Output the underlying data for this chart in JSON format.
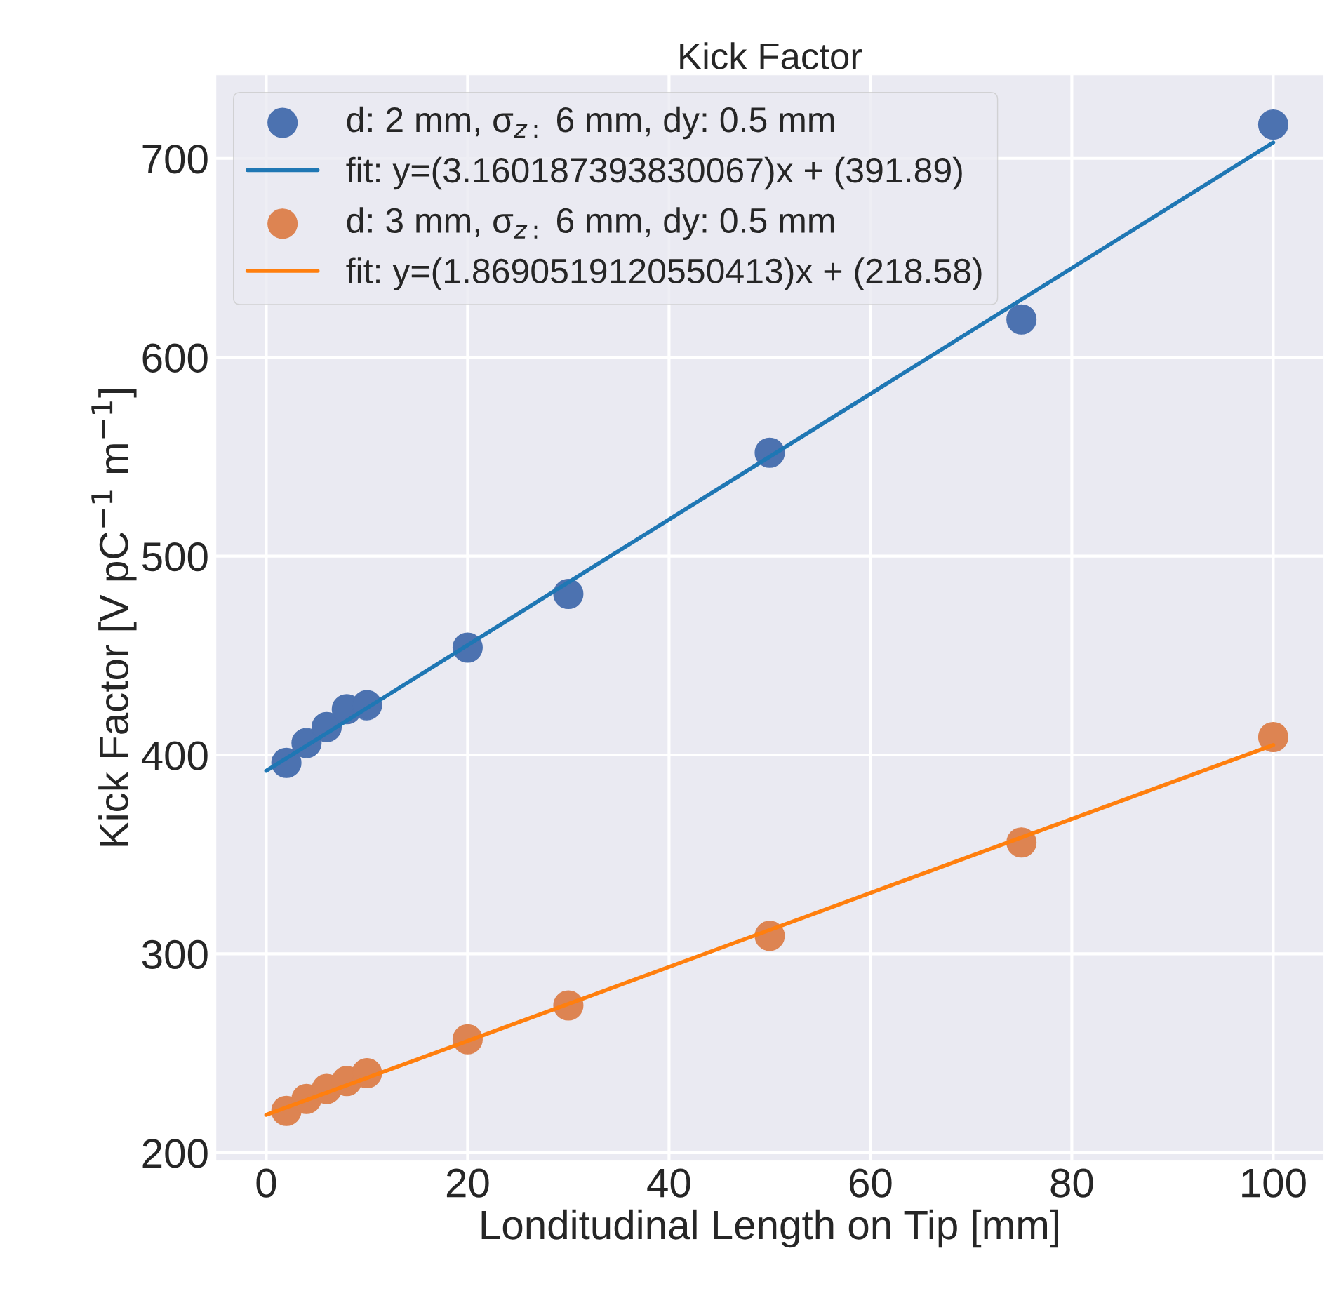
{
  "chart_data": {
    "type": "scatter",
    "title": "Kick Factor",
    "xlabel": "Londitudinal Length on Tip [mm]",
    "ylabel": "Kick Factor [V pC$^{−1}$ m$^{−1}$]",
    "series": [
      {
        "marker": "circle",
        "name": "d: 2 mm, σ$_{z:}$ 6 mm, dy: 0.5 mm",
        "color": "#4c72b0",
        "x": [
          2,
          4,
          6,
          8,
          10,
          20,
          30,
          50,
          75,
          100
        ],
        "values": [
          396,
          406,
          414,
          423,
          425,
          454,
          481,
          552,
          619,
          717
        ]
      },
      {
        "type": "line",
        "marker": "none",
        "name": "fit: y=(3.160187393830067)x + (391.89)",
        "color": "#1f77b4",
        "x": [
          0,
          100
        ],
        "values": [
          392,
          708
        ]
      },
      {
        "marker": "circle",
        "name": "d: 3 mm, σ$_{z:}$ 6 mm, dy: 0.5 mm",
        "color": "#dd8452",
        "x": [
          2,
          4,
          6,
          8,
          10,
          20,
          30,
          50,
          75,
          100
        ],
        "values": [
          221,
          227,
          232,
          236,
          240,
          257,
          274,
          309,
          356,
          409
        ]
      },
      {
        "type": "line",
        "name": "fit: y=(1.8690519120550413)x + (218.58)",
        "color": "#ff7f0e",
        "x": [
          0,
          100
        ],
        "marker": "none",
        "values": [
          219,
          405
        ]
      }
    ],
    "xlim": [
      -5,
      105
    ],
    "ylim": [
      196,
      742
    ],
    "xticks": [
      0,
      20,
      40,
      60,
      80,
      100
    ],
    "yticks": [
      200,
      300,
      400,
      500,
      600,
      700
    ],
    "grid": true,
    "legend": "top left",
    "line_style": "solid"
  }
}
